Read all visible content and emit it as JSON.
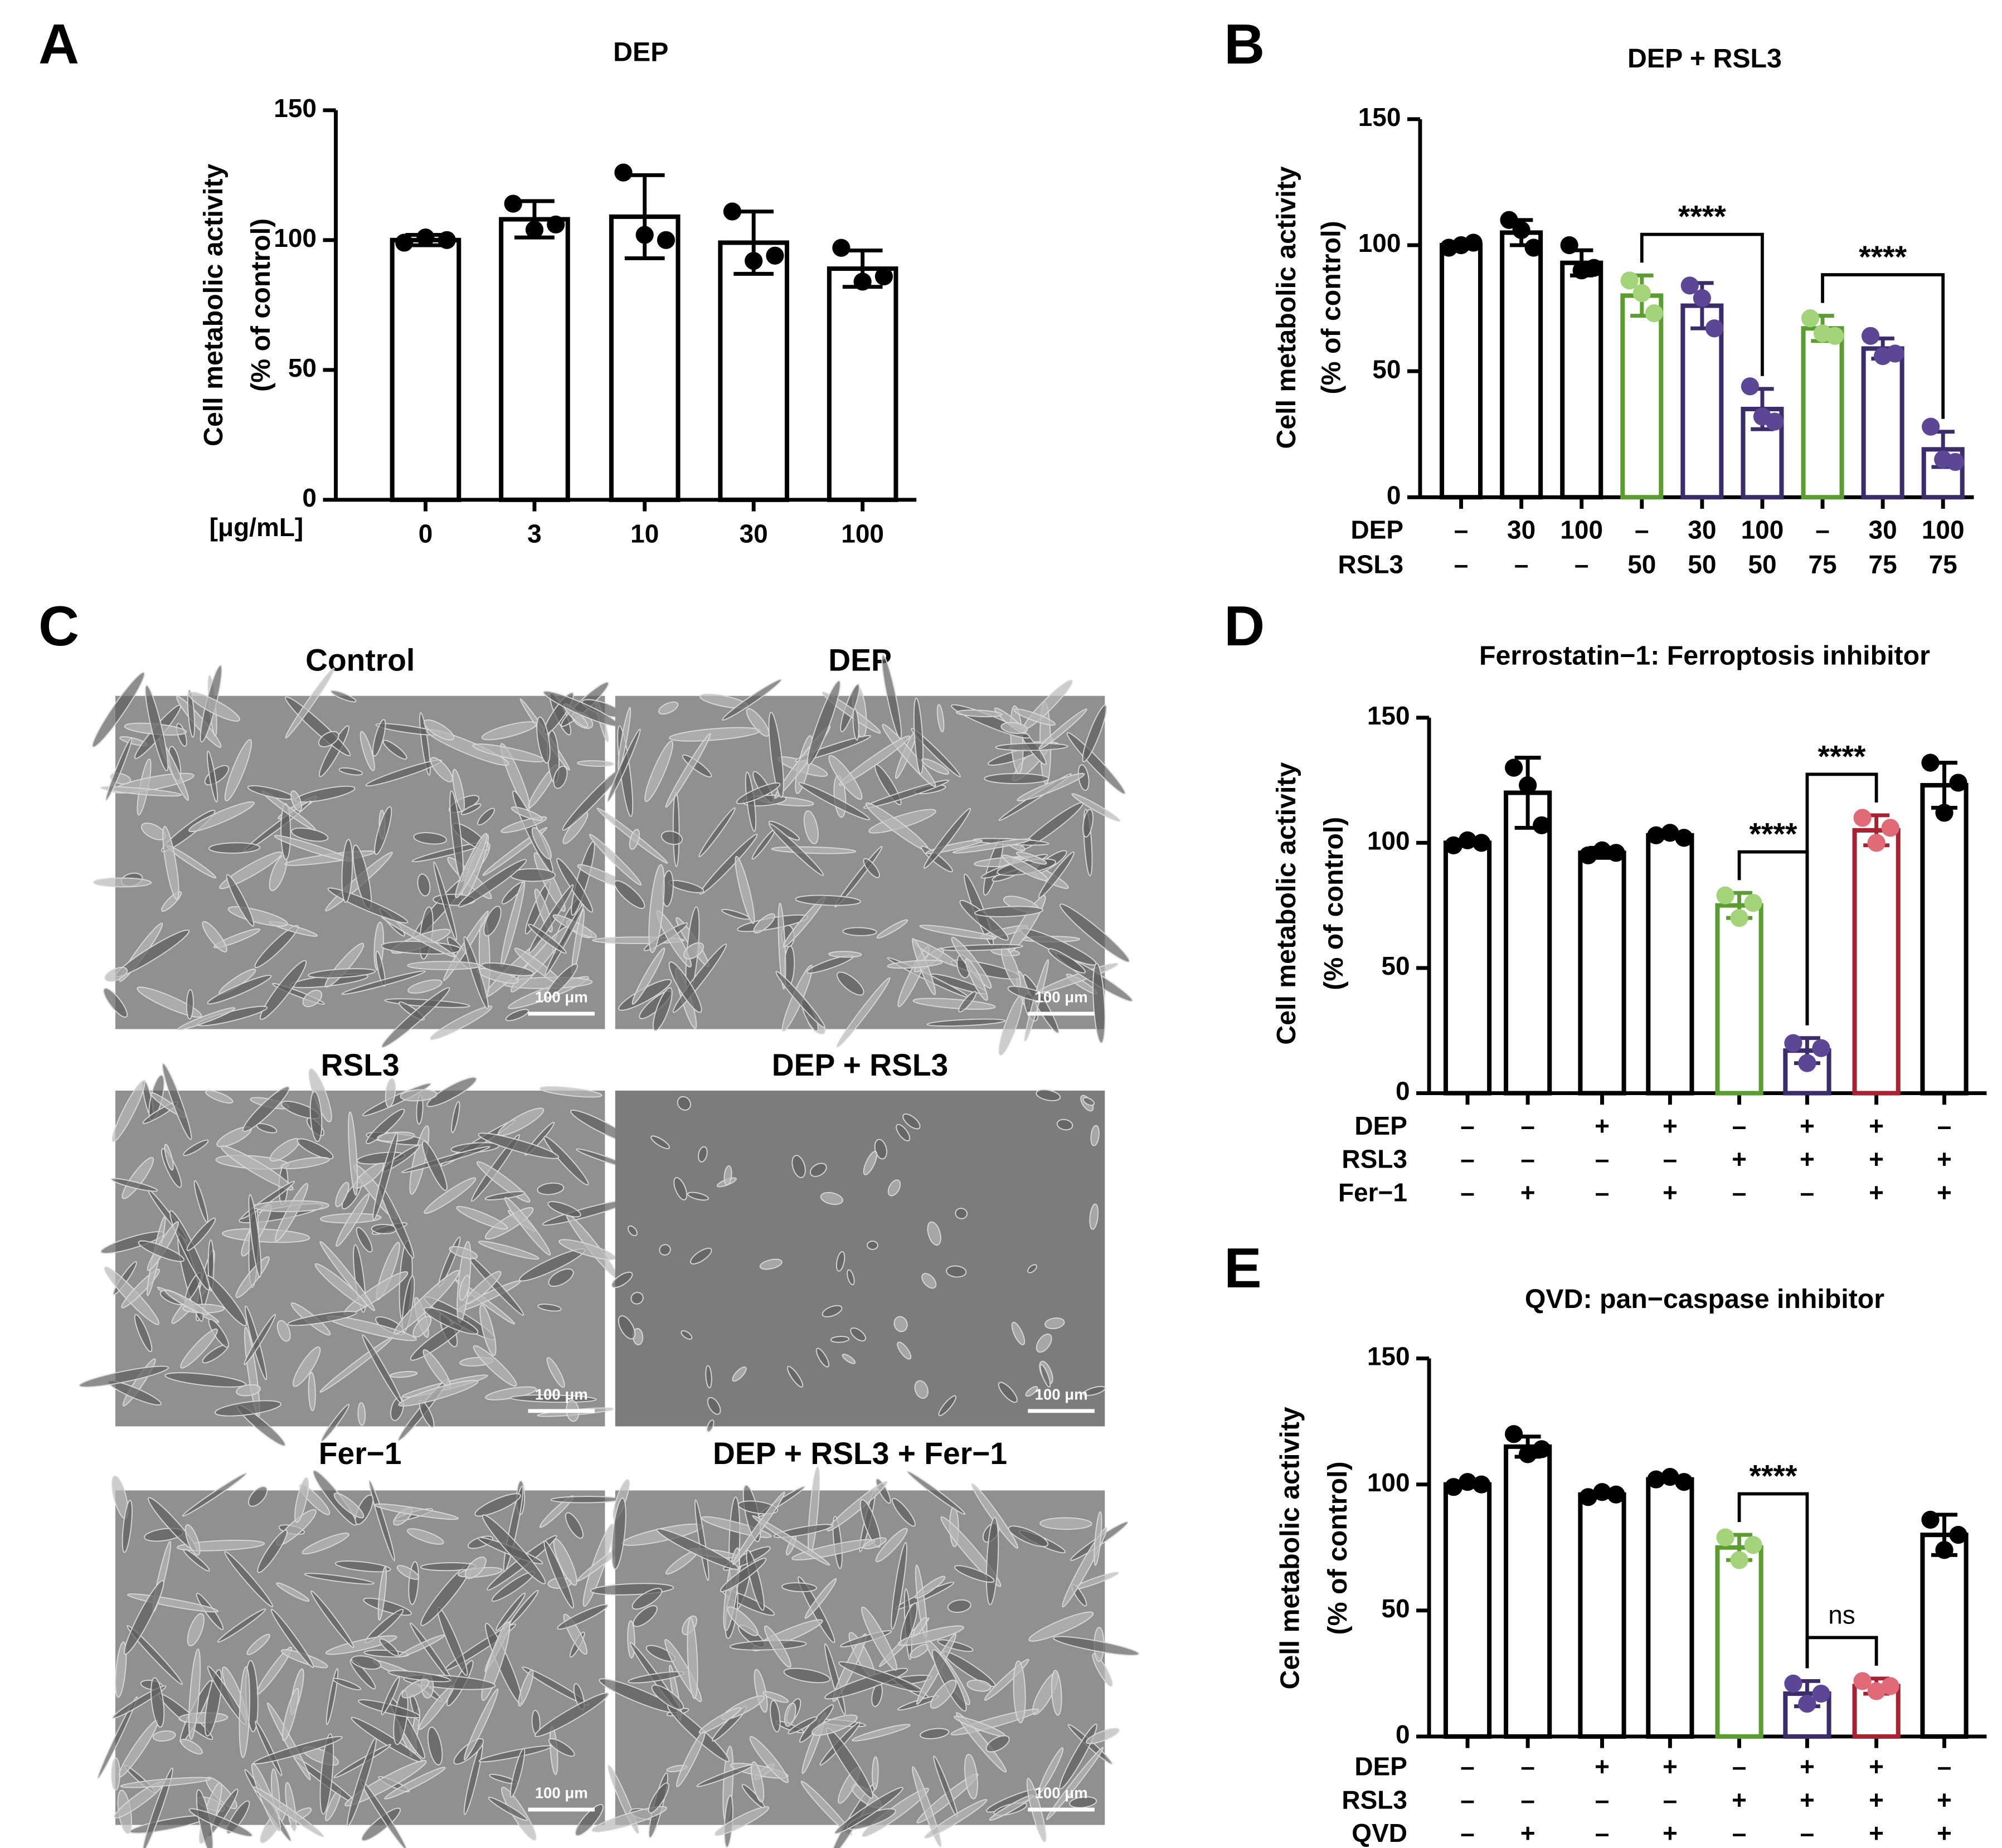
{
  "chart_data": [
    {
      "type": "bar",
      "panel": "A",
      "title": "DEP",
      "ylabel": [
        "Cell metabolic activity",
        "(% of control)"
      ],
      "xlabel": "[μg/mL]",
      "categories": [
        "0",
        "3",
        "10",
        "30",
        "100"
      ],
      "values": [
        100,
        108,
        109,
        99,
        89
      ],
      "errors": [
        2,
        7,
        16,
        12,
        7
      ],
      "points": [
        [
          99,
          101,
          100
        ],
        [
          114,
          104,
          106
        ],
        [
          126,
          102,
          100
        ],
        [
          111,
          92,
          94
        ],
        [
          97,
          84,
          86
        ]
      ],
      "bar_colors": [
        "#000000",
        "#000000",
        "#000000",
        "#000000",
        "#000000"
      ],
      "point_colors": [
        "#000000",
        "#000000",
        "#000000",
        "#000000",
        "#000000"
      ],
      "ylim": [
        0,
        150
      ],
      "yticks": [
        0,
        50,
        100,
        150
      ]
    },
    {
      "type": "bar",
      "panel": "B",
      "title": "DEP + RSL3",
      "ylabel": [
        "Cell metabolic activity",
        "(% of control)"
      ],
      "categories": [
        null,
        null,
        null,
        null,
        null,
        null,
        null,
        null,
        null
      ],
      "rows": [
        {
          "label": "DEP",
          "values": [
            "–",
            "30",
            "100",
            "–",
            "30",
            "100",
            "–",
            "30",
            "100"
          ]
        },
        {
          "label": "RSL3",
          "values": [
            "–",
            "–",
            "–",
            "50",
            "50",
            "50",
            "75",
            "75",
            "75"
          ]
        }
      ],
      "values": [
        100,
        105,
        93,
        80,
        76,
        35,
        67,
        59,
        19
      ],
      "errors": [
        1,
        5,
        5,
        8,
        9,
        8,
        5,
        4,
        7
      ],
      "points": [
        [
          99,
          100,
          101
        ],
        [
          110,
          106,
          99
        ],
        [
          100,
          90,
          91
        ],
        [
          86,
          81,
          73
        ],
        [
          84,
          79,
          67
        ],
        [
          44,
          32,
          30
        ],
        [
          71,
          65,
          64
        ],
        [
          64,
          56,
          57
        ],
        [
          28,
          15,
          14
        ]
      ],
      "bar_colors": [
        "#000000",
        "#000000",
        "#000000",
        "#5a9e2f",
        "#3b2c6b",
        "#3b2c6b",
        "#5a9e2f",
        "#3b2c6b",
        "#3b2c6b"
      ],
      "point_colors": [
        "#000000",
        "#000000",
        "#000000",
        "#a3d47a",
        "#5b4796",
        "#5b4796",
        "#a3d47a",
        "#5b4796",
        "#5b4796"
      ],
      "brackets": [
        {
          "from": 3,
          "to": 5,
          "label": "****"
        },
        {
          "from": 6,
          "to": 8,
          "label": "****"
        }
      ],
      "ylim": [
        0,
        150
      ],
      "yticks": [
        0,
        50,
        100,
        150
      ]
    },
    {
      "type": "bar",
      "panel": "D",
      "title": "Ferrostatin−1: Ferroptosis inhibitor",
      "ylabel": [
        "Cell metabolic activity",
        "(% of control)"
      ],
      "categories": [
        null,
        null,
        null,
        null,
        null,
        null,
        null,
        null
      ],
      "rows": [
        {
          "label": "DEP",
          "values": [
            "–",
            "–",
            "+",
            "+",
            "–",
            "+",
            "+",
            "–"
          ]
        },
        {
          "label": "RSL3",
          "values": [
            "–",
            "–",
            "–",
            "–",
            "+",
            "+",
            "+",
            "+"
          ]
        },
        {
          "label": "Fer−1",
          "values": [
            "–",
            "+",
            "–",
            "+",
            "–",
            "–",
            "+",
            "+"
          ]
        }
      ],
      "values": [
        100,
        120,
        96,
        103,
        75,
        17,
        105,
        123
      ],
      "errors": [
        1,
        14,
        2,
        1,
        5,
        5,
        6,
        9
      ],
      "points": [
        [
          99,
          101,
          100
        ],
        [
          130,
          123,
          107
        ],
        [
          95,
          97,
          96
        ],
        [
          103,
          104,
          102
        ],
        [
          79,
          70,
          76
        ],
        [
          20,
          12,
          18
        ],
        [
          110,
          100,
          106
        ],
        [
          132,
          112,
          124
        ]
      ],
      "bar_colors": [
        "#000000",
        "#000000",
        "#000000",
        "#000000",
        "#5a9e2f",
        "#3b2c6b",
        "#a82232",
        "#000000"
      ],
      "point_colors": [
        "#000000",
        "#000000",
        "#000000",
        "#000000",
        "#a3d47a",
        "#5b4796",
        "#e06a75",
        "#000000"
      ],
      "brackets": [
        {
          "from": 4,
          "to": 5,
          "label": "****"
        },
        {
          "from": 5,
          "to": 6,
          "label": "****"
        }
      ],
      "ylim": [
        0,
        150
      ],
      "yticks": [
        0,
        50,
        100,
        150
      ]
    },
    {
      "type": "bar",
      "panel": "E",
      "title": "QVD: pan−caspase inhibitor",
      "ylabel": [
        "Cell metabolic activity",
        "(% of control)"
      ],
      "categories": [
        null,
        null,
        null,
        null,
        null,
        null,
        null,
        null
      ],
      "rows": [
        {
          "label": "DEP",
          "values": [
            "–",
            "–",
            "+",
            "+",
            "–",
            "+",
            "+",
            "–"
          ]
        },
        {
          "label": "RSL3",
          "values": [
            "–",
            "–",
            "–",
            "–",
            "+",
            "+",
            "+",
            "+"
          ]
        },
        {
          "label": "QVD",
          "values": [
            "–",
            "+",
            "–",
            "+",
            "–",
            "–",
            "+",
            "+"
          ]
        }
      ],
      "values": [
        100,
        115,
        96,
        102,
        75,
        17,
        20,
        80
      ],
      "errors": [
        1,
        4,
        1,
        1,
        5,
        5,
        3,
        8
      ],
      "points": [
        [
          99,
          101,
          100
        ],
        [
          120,
          112,
          114
        ],
        [
          95,
          97,
          96
        ],
        [
          102,
          103,
          101
        ],
        [
          79,
          70,
          76
        ],
        [
          21,
          13,
          17
        ],
        [
          22,
          18,
          20
        ],
        [
          86,
          74,
          80
        ]
      ],
      "bar_colors": [
        "#000000",
        "#000000",
        "#000000",
        "#000000",
        "#5a9e2f",
        "#3b2c6b",
        "#a82232",
        "#000000"
      ],
      "point_colors": [
        "#000000",
        "#000000",
        "#000000",
        "#000000",
        "#a3d47a",
        "#5b4796",
        "#e06a75",
        "#000000"
      ],
      "brackets": [
        {
          "from": 4,
          "to": 5,
          "label": "****"
        },
        {
          "from": 5,
          "to": 6,
          "label": "ns"
        }
      ],
      "ylim": [
        0,
        150
      ],
      "yticks": [
        0,
        50,
        100,
        150
      ]
    }
  ],
  "micrographs": {
    "panel": "C",
    "images": [
      {
        "label": "Control",
        "scale_bar": "100 μm"
      },
      {
        "label": "DEP",
        "scale_bar": "100 μm"
      },
      {
        "label": "RSL3",
        "scale_bar": "100 μm"
      },
      {
        "label": "DEP + RSL3",
        "scale_bar": "100 μm"
      },
      {
        "label": "Fer−1",
        "scale_bar": "100 μm"
      },
      {
        "label": "DEP + RSL3 + Fer−1",
        "scale_bar": "100 μm"
      }
    ]
  }
}
